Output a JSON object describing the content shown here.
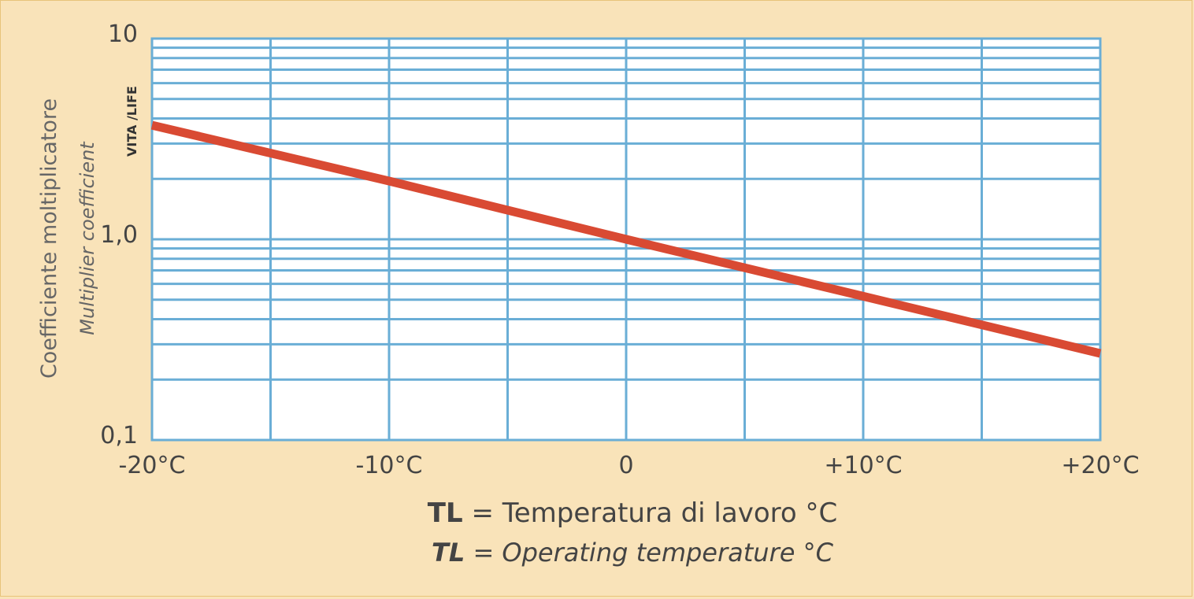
{
  "colors": {
    "background": "#f9e3b9",
    "plot_background": "#ffffff",
    "grid": "#6aaed6",
    "line": "#d94a33",
    "text": "#444444"
  },
  "chart_data": {
    "type": "line",
    "y_scale": "log",
    "xlim": [
      -20,
      20
    ],
    "ylim": [
      0.1,
      10
    ],
    "x_ticks": [
      -20,
      -10,
      0,
      10,
      20
    ],
    "x_tick_labels": [
      "-20°C",
      "-10°C",
      "0",
      "+10°C",
      "+20°C"
    ],
    "y_tick_labels": [
      "10",
      "1,0",
      "0,1"
    ],
    "grid": true,
    "series": [
      {
        "label": "VITA /LIFE",
        "x": [
          -20,
          -10,
          0,
          10,
          20
        ],
        "y": [
          3.7,
          1.95,
          1.0,
          0.52,
          0.27
        ]
      }
    ],
    "ylabel": "Coefficiente moltiplicatore",
    "ylabel_en": "Multiplier coefficient",
    "xlabel_prefix": "TL",
    "xlabel_rest": " = Temperatura di lavoro °C",
    "xlabel_en_prefix": "TL",
    "xlabel_en_rest": " = Operating temperature °C"
  }
}
